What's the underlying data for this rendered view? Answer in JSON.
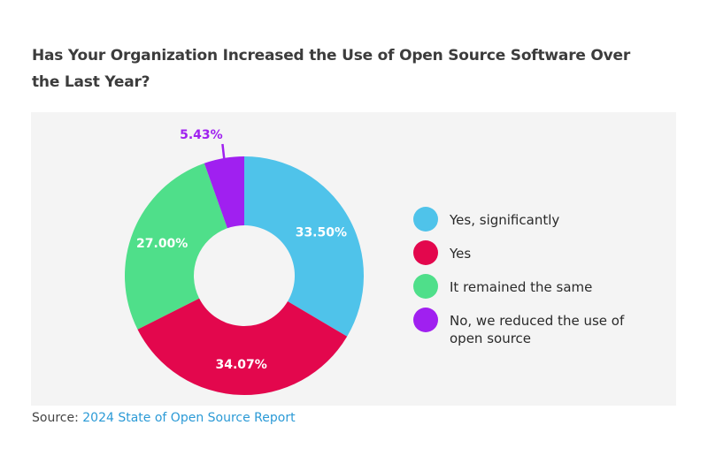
{
  "title": "Has Your Organization Increased the Use of Open Source Software Over the Last Year?",
  "source": {
    "prefix": "Source:",
    "link_text": "2024 State of Open Source Report"
  },
  "chart_data": {
    "type": "pie",
    "donut": true,
    "categories": [
      "Yes, significantly",
      "Yes",
      "It remained the same",
      "No, we reduced the use of open source"
    ],
    "values": [
      33.5,
      34.07,
      27.0,
      5.43
    ],
    "labels": [
      "33.50%",
      "34.07%",
      "27.00%",
      "5.43%"
    ],
    "colors": [
      "#4fc3ea",
      "#e3074d",
      "#4fdf8a",
      "#a020f0"
    ],
    "legend_position": "right"
  }
}
